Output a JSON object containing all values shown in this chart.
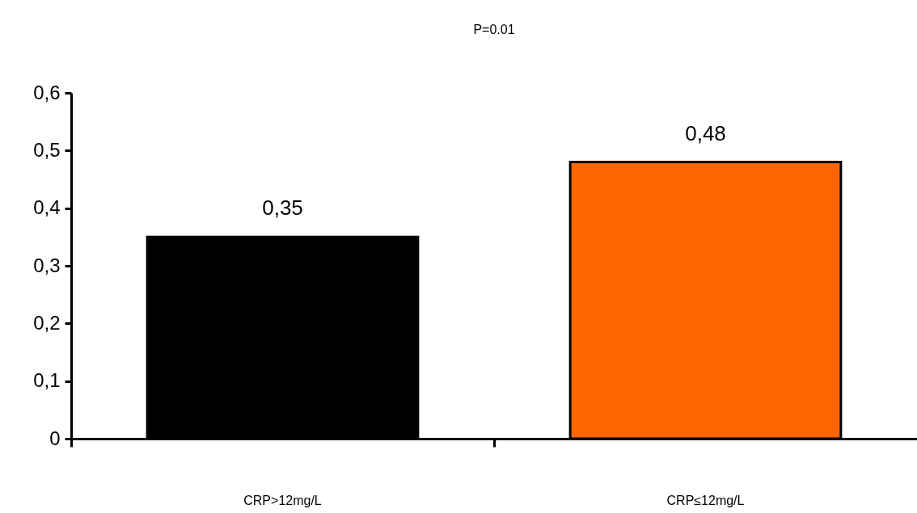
{
  "chart_data": {
    "type": "bar",
    "annotations": [
      "P=0.01"
    ],
    "categories": [
      "CRP>12mg/L",
      "CRP≤12mg/L"
    ],
    "values": [
      0.35,
      0.48
    ],
    "colors": [
      "#000000",
      "#ff6600"
    ],
    "value_labels": [
      "0,35",
      "0,48"
    ],
    "ylim": [
      0,
      0.6
    ],
    "yticks": [
      0,
      {
        "value": 0.1,
        "label": "0,1"
      },
      {
        "value": 0.2,
        "label": "0,2"
      },
      {
        "value": 0.3,
        "label": "0,3"
      },
      {
        "value": 0.4,
        "label": "0,4"
      },
      {
        "value": 0.5,
        "label": "0,5"
      },
      {
        "value": 0.6,
        "label": "0,6"
      }
    ],
    "grid": false
  }
}
